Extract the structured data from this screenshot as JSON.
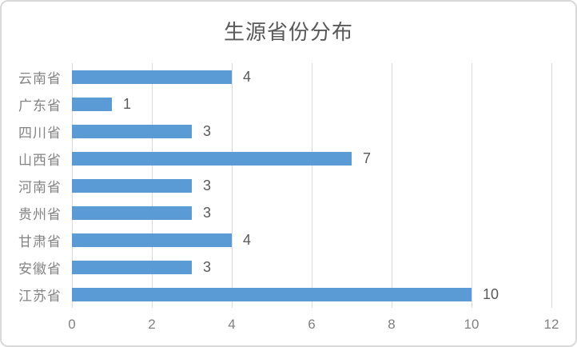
{
  "chart_data": {
    "type": "bar",
    "orientation": "horizontal",
    "title": "生源省份分布",
    "categories": [
      "云南省",
      "广东省",
      "四川省",
      "山西省",
      "河南省",
      "贵州省",
      "甘肃省",
      "安徽省",
      "江苏省"
    ],
    "values": [
      4,
      1,
      3,
      7,
      3,
      3,
      4,
      3,
      10
    ],
    "data_labels": [
      "4",
      "1",
      "3",
      "7",
      "3",
      "3",
      "4",
      "3",
      "10"
    ],
    "xlabel": "",
    "ylabel": "",
    "xlim": [
      0,
      12
    ],
    "xticks": [
      0,
      2,
      4,
      6,
      8,
      10,
      12
    ],
    "grid": "vertical-gridlines-on",
    "legend_position": "none",
    "bar_color": "#5b9bd5",
    "title_color": "#595959",
    "category_label_color": "#848484",
    "tick_label_color": "#808080",
    "value_label_color": "#595959",
    "gridline_color": "#d9d9d9",
    "border_color": "#d9d9d9",
    "background_color": "#ffffff"
  }
}
